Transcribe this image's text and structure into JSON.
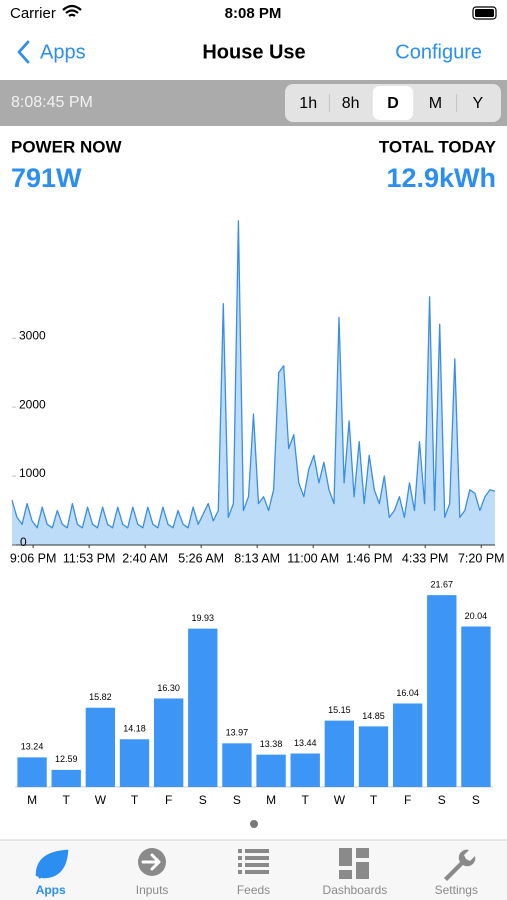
{
  "status_bar": {
    "carrier": "Carrier",
    "time": "8:08 PM"
  },
  "nav": {
    "back": "Apps",
    "title": "House Use",
    "action": "Configure"
  },
  "toolbar": {
    "time": "8:08:45 PM",
    "ranges": [
      "1h",
      "8h",
      "D",
      "M",
      "Y"
    ],
    "selected": 2
  },
  "summary": {
    "left_label": "POWER NOW",
    "left_value": "791W",
    "right_label": "TOTAL TODAY",
    "right_value": "12.9kWh"
  },
  "chart_data": [
    {
      "type": "area",
      "values": [
        650,
        400,
        300,
        600,
        350,
        250,
        550,
        300,
        250,
        500,
        300,
        250,
        600,
        300,
        250,
        550,
        300,
        250,
        550,
        300,
        250,
        550,
        300,
        250,
        550,
        300,
        250,
        550,
        300,
        250,
        550,
        300,
        250,
        500,
        300,
        250,
        550,
        300,
        450,
        600,
        350,
        500,
        3500,
        400,
        600,
        4700,
        500,
        700,
        1900,
        600,
        700,
        500,
        800,
        2500,
        2600,
        1400,
        1600,
        900,
        700,
        1100,
        1300,
        900,
        1200,
        800,
        600,
        3300,
        900,
        1800,
        700,
        1500,
        600,
        1300,
        800,
        600,
        1000,
        400,
        500,
        700,
        400,
        900,
        500,
        1500,
        600,
        3600,
        500,
        3200,
        400,
        600,
        2700,
        400,
        500,
        800,
        750,
        500,
        700,
        800,
        780
      ],
      "color": "#3a8ee6",
      "fill": "#bcdcf8",
      "xlim": [
        0,
        96
      ],
      "xticks": [
        {
          "value": 4.2,
          "label": "9:06 PM"
        },
        {
          "value": 15.33,
          "label": "11:53 PM"
        },
        {
          "value": 26.47,
          "label": "2:40 AM"
        },
        {
          "value": 37.6,
          "label": "5:26 AM"
        },
        {
          "value": 48.73,
          "label": "8:13 AM"
        },
        {
          "value": 59.87,
          "label": "11:00 AM"
        },
        {
          "value": 71,
          "label": "1:46 PM"
        },
        {
          "value": 82.13,
          "label": "4:33 PM"
        },
        {
          "value": 93.27,
          "label": "7:20 PM"
        }
      ],
      "ylim": [
        0,
        4800
      ],
      "yticks": [
        0,
        1000,
        2000,
        3000
      ]
    },
    {
      "type": "bar",
      "categories": [
        "M",
        "T",
        "W",
        "T",
        "F",
        "S",
        "S",
        "M",
        "T",
        "W",
        "T",
        "F",
        "S",
        "S"
      ],
      "values": [
        13.24,
        12.59,
        15.82,
        14.18,
        16.3,
        19.93,
        13.97,
        13.38,
        13.44,
        15.15,
        14.85,
        16.04,
        21.67,
        20.04
      ],
      "value_labels": [
        "13.24",
        "12.59",
        "15.82",
        "14.18",
        "16.30",
        "19.93",
        "13.97",
        "13.38",
        "13.44",
        "15.15",
        "14.85",
        "16.04",
        "21.67",
        "20.04"
      ],
      "color": "#3d95f5",
      "ylim": [
        11.7,
        22.3
      ]
    }
  ],
  "tabs": {
    "items": [
      "Apps",
      "Inputs",
      "Feeds",
      "Dashboards",
      "Settings"
    ],
    "selected": 0
  }
}
